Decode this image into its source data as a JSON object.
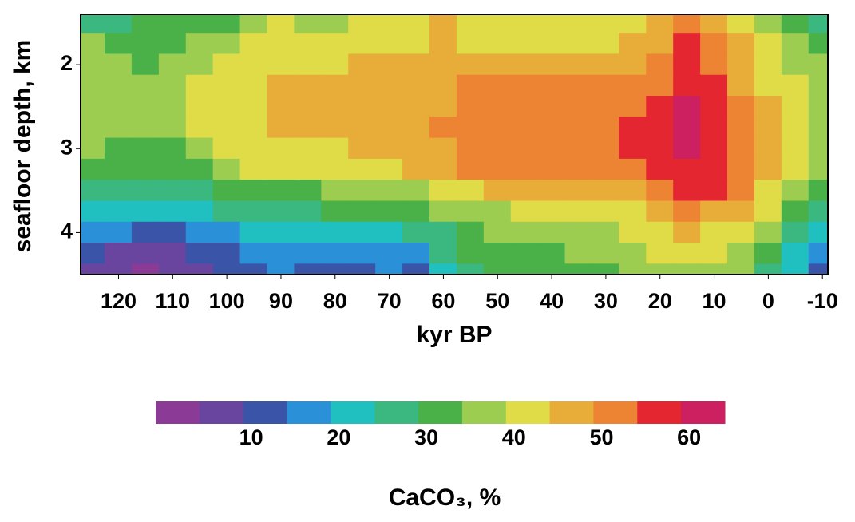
{
  "chart_data": {
    "type": "contour",
    "x_label": "kyr BP",
    "y_label": "seafloor  depth, km",
    "colorbar_label": "CaCO₃, %",
    "xlim": [
      127,
      -11
    ],
    "ylim": [
      1.4,
      4.5
    ],
    "xticks": [
      120,
      110,
      100,
      90,
      80,
      70,
      60,
      50,
      40,
      30,
      20,
      10,
      0,
      -10
    ],
    "yticks": [
      2,
      3,
      4
    ],
    "x": [
      125,
      120,
      115,
      110,
      105,
      100,
      95,
      90,
      85,
      80,
      75,
      70,
      65,
      60,
      55,
      50,
      45,
      40,
      35,
      30,
      25,
      20,
      15,
      10,
      5,
      0,
      -5,
      -10
    ],
    "y": [
      1.5,
      1.75,
      2,
      2.25,
      2.5,
      2.75,
      3,
      3.25,
      3.5,
      3.75,
      4,
      4.25,
      4.5
    ],
    "z": [
      [
        27,
        27,
        32,
        32,
        32,
        33,
        37,
        41,
        38,
        38,
        42,
        42,
        44,
        45,
        42,
        42,
        42,
        42,
        42,
        42,
        42,
        45,
        52,
        46,
        42,
        38,
        32,
        28
      ],
      [
        36,
        32,
        33,
        33,
        37,
        38,
        41,
        42,
        42,
        42,
        43,
        43,
        44,
        45,
        44,
        44,
        44,
        44,
        44,
        44,
        45,
        47,
        57,
        50,
        45,
        40,
        35,
        32
      ],
      [
        37,
        36,
        34,
        35,
        39,
        41,
        43,
        43,
        44,
        44,
        46,
        46,
        46,
        46,
        48,
        48,
        48,
        48,
        47,
        47,
        48,
        50,
        57,
        52,
        47,
        42,
        38,
        35
      ],
      [
        38,
        38,
        37,
        38,
        40,
        42,
        44,
        46,
        46,
        46,
        46,
        46,
        47,
        48,
        51,
        51,
        51,
        51,
        51,
        51,
        52,
        54,
        58,
        55,
        49,
        44,
        40,
        37
      ],
      [
        38,
        38,
        38,
        38,
        40,
        42,
        44,
        46,
        46,
        46,
        46,
        46,
        47,
        49,
        52,
        52,
        52,
        52,
        52,
        52,
        53,
        55,
        60,
        57,
        50,
        45,
        41,
        38
      ],
      [
        38,
        38,
        37,
        37,
        40,
        42,
        44,
        45,
        46,
        46,
        46,
        46,
        47,
        50,
        53,
        53,
        53,
        53,
        53,
        53,
        55,
        57,
        62,
        58,
        52,
        46,
        42,
        39
      ],
      [
        35,
        34,
        32,
        32,
        36,
        40,
        43,
        44,
        44,
        44,
        45,
        45,
        46,
        48,
        52,
        53,
        53,
        53,
        53,
        54,
        55,
        57,
        61,
        58,
        53,
        46,
        42,
        38
      ],
      [
        31,
        30,
        30,
        30,
        33,
        36,
        40,
        42,
        42,
        42,
        43,
        44,
        45,
        47,
        50,
        52,
        52,
        52,
        52,
        53,
        54,
        56,
        58,
        57,
        52,
        46,
        41,
        37
      ],
      [
        26,
        25,
        25,
        26,
        29,
        32,
        33,
        34,
        34,
        35,
        36,
        37,
        38,
        40,
        43,
        45,
        45,
        46,
        46,
        47,
        48,
        52,
        57,
        55,
        50,
        44,
        39,
        34
      ],
      [
        22,
        21,
        20,
        20,
        23,
        26,
        27,
        28,
        29,
        30,
        31,
        32,
        33,
        35,
        37,
        39,
        40,
        41,
        41,
        42,
        44,
        47,
        51,
        49,
        45,
        40,
        33,
        27
      ],
      [
        18,
        15,
        14,
        14,
        16,
        19,
        21,
        22,
        23,
        23,
        24,
        24,
        25,
        29,
        33,
        35,
        36,
        37,
        38,
        39,
        41,
        43,
        45,
        44,
        41,
        36,
        29,
        22
      ],
      [
        11,
        8,
        7,
        8,
        10,
        14,
        16,
        17,
        17,
        16,
        17,
        18,
        15,
        25,
        31,
        32,
        33,
        34,
        35,
        36,
        38,
        40,
        41,
        40,
        38,
        32,
        24,
        15
      ],
      [
        8,
        5,
        4,
        5,
        8,
        12,
        14,
        15,
        14,
        13,
        14,
        15,
        12,
        22,
        29,
        30,
        31,
        32,
        33,
        34,
        36,
        38,
        38,
        37,
        35,
        29,
        20,
        10
      ]
    ],
    "levels": [
      0,
      5,
      10,
      15,
      20,
      25,
      30,
      35,
      40,
      45,
      50,
      55,
      60,
      65
    ],
    "colors": [
      "#8b3a96",
      "#6a45a0",
      "#3a55a8",
      "#2a90d8",
      "#20c0c0",
      "#3ab880",
      "#4ab048",
      "#9ccc50",
      "#e0dc48",
      "#e8ac38",
      "#ec8434",
      "#e42630",
      "#cc2060"
    ],
    "colorbar_ticks": [
      10,
      20,
      30,
      40,
      50,
      60
    ]
  }
}
